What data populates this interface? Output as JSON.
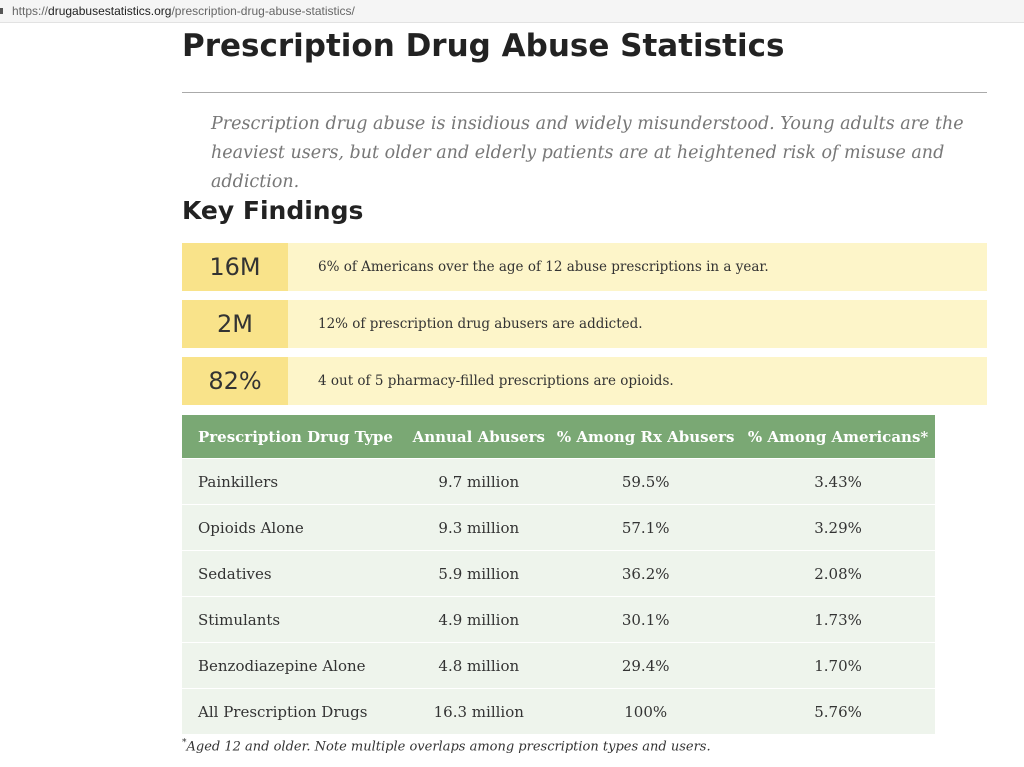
{
  "browser": {
    "url_scheme": "https://",
    "url_domain": "drugabusestatistics.org",
    "url_path": "/prescription-drug-abuse-statistics/"
  },
  "title": "Prescription Drug Abuse Statistics",
  "intro": "Prescription drug abuse is insidious and widely misunderstood. Young adults are the heaviest users, but older and elderly patients are at heightened risk of misuse and addiction.",
  "key_findings_heading": "Key Findings",
  "findings": [
    {
      "value": "16M",
      "text": "6% of Americans over the age of 12 abuse prescriptions in a year."
    },
    {
      "value": "2M",
      "text": "12% of prescription drug abusers are addicted."
    },
    {
      "value": "82%",
      "text": "4 out of 5 pharmacy-filled prescriptions are opioids."
    }
  ],
  "table": {
    "headers": [
      "Prescription Drug Type",
      "Annual Abusers",
      "% Among Rx Abusers",
      "% Among Americans*"
    ],
    "rows": [
      [
        "Painkillers",
        "9.7 million",
        "59.5%",
        "3.43%"
      ],
      [
        "Opioids Alone",
        "9.3 million",
        "57.1%",
        "3.29%"
      ],
      [
        "Sedatives",
        "5.9 million",
        "36.2%",
        "2.08%"
      ],
      [
        "Stimulants",
        "4.9 million",
        "30.1%",
        "1.73%"
      ],
      [
        "Benzodiazepine Alone",
        "4.8 million",
        "29.4%",
        "1.70%"
      ],
      [
        "All Prescription Drugs",
        "16.3 million",
        "100%",
        "5.76%"
      ]
    ]
  },
  "footnote": {
    "mark": "*",
    "text": "Aged 12 and older. Note multiple overlaps among prescription types and users."
  },
  "colors": {
    "highlight": "#f9e38a",
    "highlight_light": "#fdf5c9",
    "table_header": "#7aa874",
    "table_row": "#eef4ec"
  }
}
